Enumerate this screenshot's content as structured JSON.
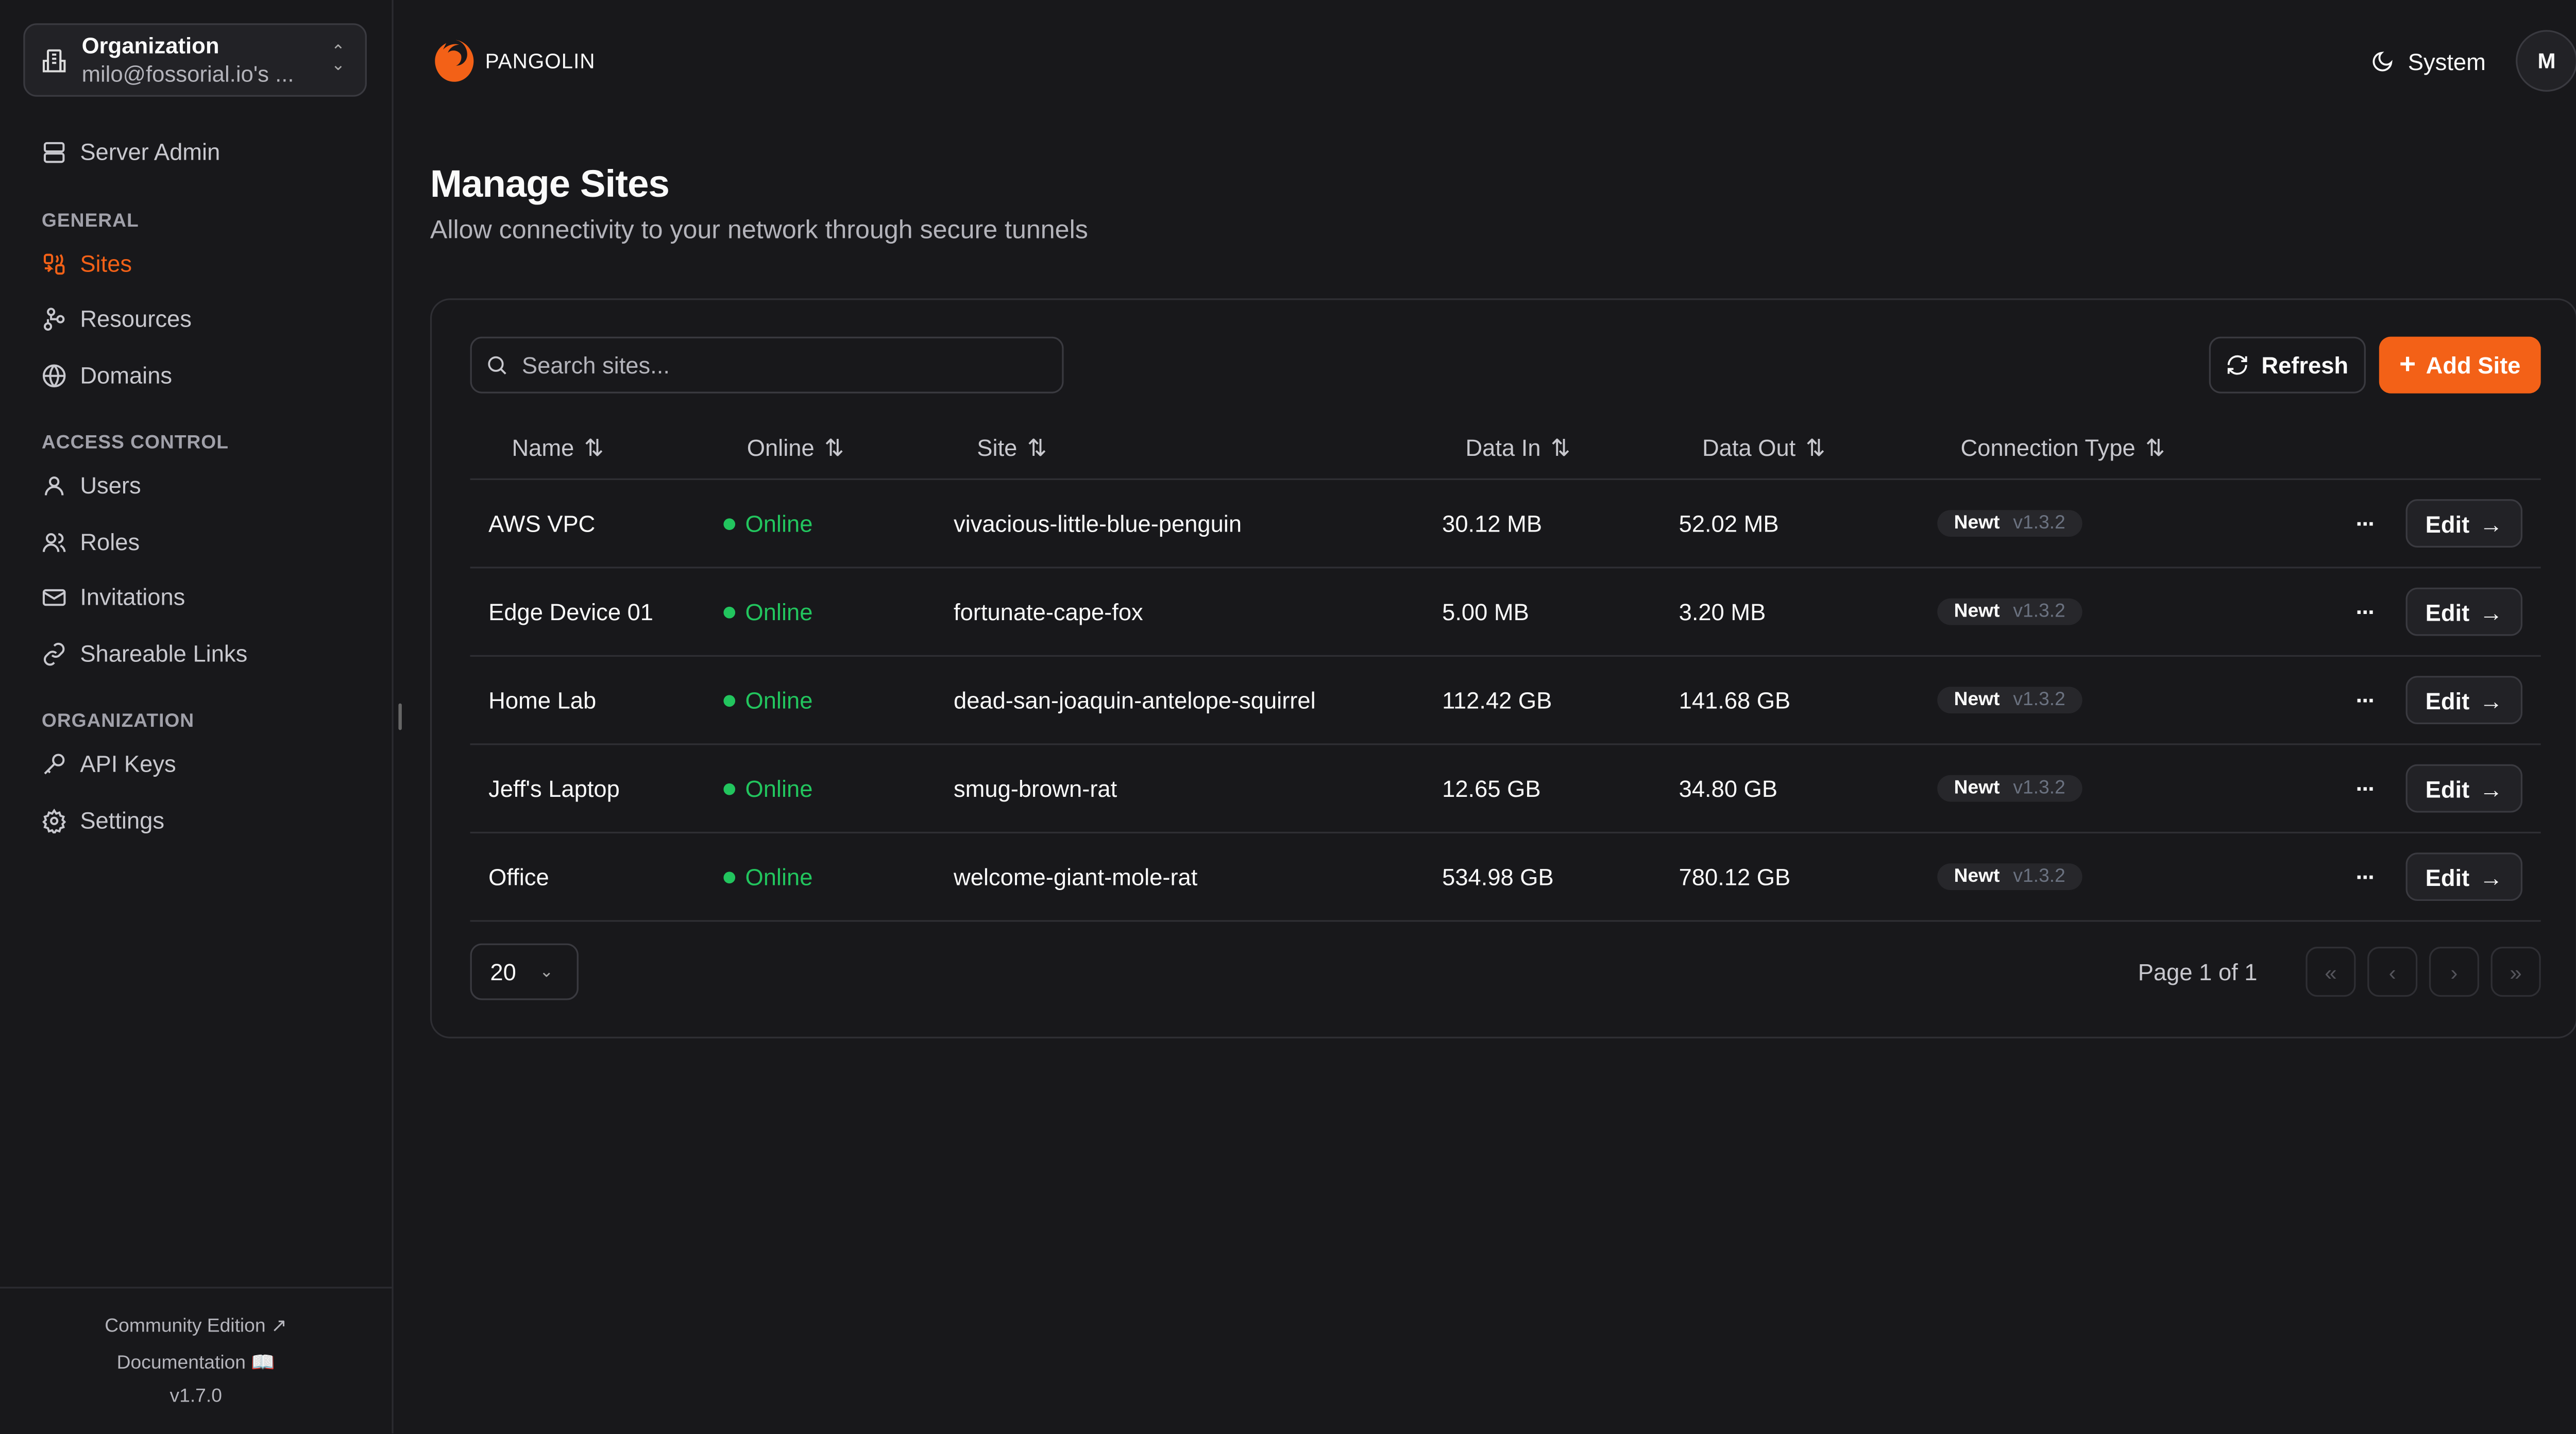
{
  "org": {
    "label": "Organization",
    "name": "milo@fossorial.io's ..."
  },
  "sidebar": {
    "server_admin": "Server Admin",
    "sections": [
      "GENERAL",
      "ACCESS CONTROL",
      "ORGANIZATION"
    ],
    "items": [
      {
        "label": "Sites",
        "icon": "sites-icon",
        "active": true
      },
      {
        "label": "Resources",
        "icon": "resources-icon"
      },
      {
        "label": "Domains",
        "icon": "globe-icon"
      },
      {
        "label": "Users",
        "icon": "user-icon"
      },
      {
        "label": "Roles",
        "icon": "users-icon"
      },
      {
        "label": "Invitations",
        "icon": "mail-icon"
      },
      {
        "label": "Shareable Links",
        "icon": "link-icon"
      },
      {
        "label": "API Keys",
        "icon": "key-icon"
      },
      {
        "label": "Settings",
        "icon": "gear-icon"
      }
    ],
    "footer": {
      "community": "Community Edition",
      "docs": "Documentation",
      "version": "v1.7.0"
    }
  },
  "header": {
    "brand": "PANGOLIN",
    "theme": "System",
    "avatar": "M"
  },
  "page": {
    "title": "Manage Sites",
    "subtitle": "Allow connectivity to your network through secure tunnels"
  },
  "toolbar": {
    "search_placeholder": "Search sites...",
    "refresh": "Refresh",
    "add": "Add Site"
  },
  "table": {
    "columns": [
      "Name",
      "Online",
      "Site",
      "Data In",
      "Data Out",
      "Connection Type"
    ],
    "rows": [
      {
        "name": "AWS VPC",
        "status": "Online",
        "site": "vivacious-little-blue-penguin",
        "in": "30.12 MB",
        "out": "52.02 MB",
        "type": "Newt",
        "ver": "v1.3.2"
      },
      {
        "name": "Edge Device 01",
        "status": "Online",
        "site": "fortunate-cape-fox",
        "in": "5.00 MB",
        "out": "3.20 MB",
        "type": "Newt",
        "ver": "v1.3.2"
      },
      {
        "name": "Home Lab",
        "status": "Online",
        "site": "dead-san-joaquin-antelope-squirrel",
        "in": "112.42 GB",
        "out": "141.68 GB",
        "type": "Newt",
        "ver": "v1.3.2"
      },
      {
        "name": "Jeff's Laptop",
        "status": "Online",
        "site": "smug-brown-rat",
        "in": "12.65 GB",
        "out": "34.80 GB",
        "type": "Newt",
        "ver": "v1.3.2"
      },
      {
        "name": "Office",
        "status": "Online",
        "site": "welcome-giant-mole-rat",
        "in": "534.98 GB",
        "out": "780.12 GB",
        "type": "Newt",
        "ver": "v1.3.2"
      }
    ],
    "edit": "Edit"
  },
  "pagination": {
    "page_size": "20",
    "info": "Page 1 of 1"
  },
  "colors": {
    "accent": "#f36117",
    "online": "#22c55e",
    "background": "#18181b"
  }
}
